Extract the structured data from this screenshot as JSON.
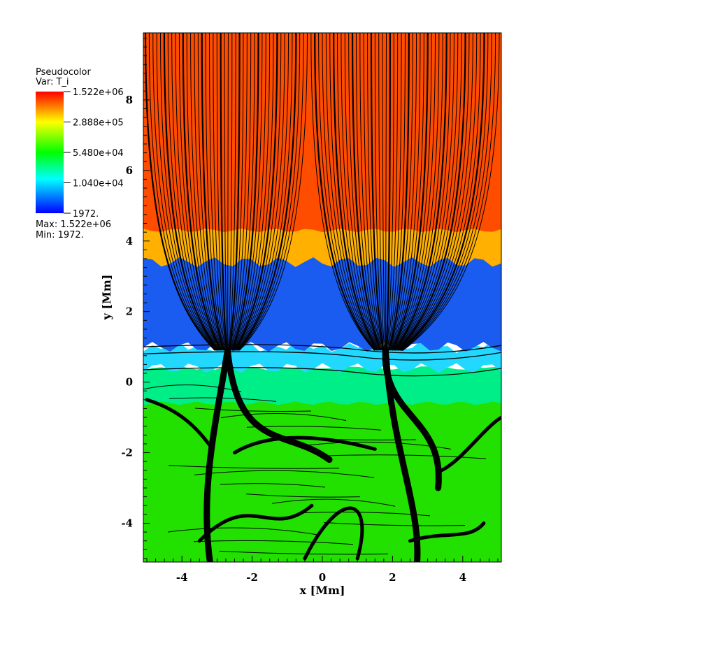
{
  "chart_data": {
    "type": "heatmap",
    "xlabel": "x [Mm]",
    "ylabel": "y [Mm]",
    "xlim": [
      -5.1,
      5.1
    ],
    "ylim": [
      -5.1,
      9.9
    ],
    "xticks": [
      -4,
      -2,
      0,
      2,
      4
    ],
    "yticks": [
      -4,
      -2,
      0,
      2,
      4,
      6,
      8
    ],
    "colormap": [
      "#0000ff",
      "#00ffff",
      "#00ff00",
      "#ffff00",
      "#ff0000"
    ],
    "field_layers": [
      {
        "from_y": 4.3,
        "to_y": 9.9,
        "value": "1.522e+06",
        "color": "#ff4d00"
      },
      {
        "from_y": 3.4,
        "to_y": 4.6,
        "value": "2.888e+05",
        "color": "#ffb000"
      },
      {
        "from_y": 1.0,
        "to_y": 4.0,
        "value": "1.040e+04",
        "color": "#1a5cf0"
      },
      {
        "from_y": 0.4,
        "to_y": 1.0,
        "value": "1.040e+04",
        "color": "#22d8ff"
      },
      {
        "from_y": -0.6,
        "to_y": 0.4,
        "value": "5.480e+04",
        "color": "#00ee88"
      },
      {
        "from_y": -5.1,
        "to_y": -0.6,
        "value": "5.480e+04",
        "color": "#22e000"
      }
    ],
    "legend": {
      "title": "Pseudocolor",
      "var": "Var: T_i",
      "labels": [
        "1.522e+06",
        "2.888e+05",
        "5.480e+04",
        "1.040e+04",
        "1972."
      ],
      "max_label": "Max:  1.522e+06",
      "min_label": "Min:  1972."
    }
  }
}
